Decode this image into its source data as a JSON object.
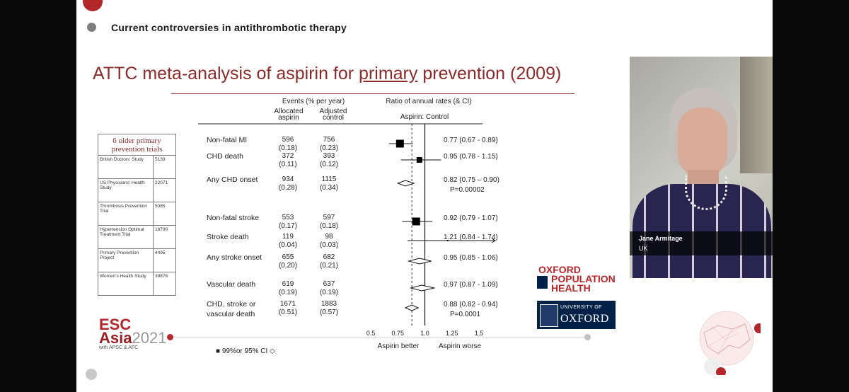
{
  "header": {
    "text": "Current controversies in antithrombotic therapy"
  },
  "slide_title": {
    "pre": "ATTC meta-analysis of aspirin for ",
    "u": "primary",
    "post": " prevention (2009)"
  },
  "trials_table": {
    "heading": "6 older primary prevention trials",
    "rows": [
      {
        "name": "British Doctors' Study",
        "n": "5139"
      },
      {
        "name": "US Physicians' Health Study",
        "n": "22071"
      },
      {
        "name": "Thrombosis Prevention Trial",
        "n": "5085"
      },
      {
        "name": "Hypertension Optimal Treatment Trial",
        "n": "18790"
      },
      {
        "name": "Primary Prevention Project",
        "n": "4495"
      },
      {
        "name": "Women's Health Study",
        "n": "39876"
      }
    ]
  },
  "columns": {
    "events": "Events  (% per year)",
    "allocated": "Allocated aspirin",
    "adjusted": "Adjusted control",
    "ratio": "Ratio of annual rates (& CI)",
    "subtitle": "Aspirin: Control"
  },
  "chart_data": {
    "type": "forest",
    "xlim": [
      0.5,
      1.5
    ],
    "reference_line": 1.0,
    "dashed_line": 0.88,
    "x_ticks": [
      "0.5",
      "0.75",
      "1.0",
      "1.25",
      "1.5"
    ],
    "x_label_left": "Aspirin better",
    "x_label_right": "Aspirin worse",
    "rows": [
      {
        "label": "Non-fatal MI",
        "asp": "596",
        "asp_pct": "(0.18)",
        "ctl": "756",
        "ctl_pct": "(0.23)",
        "est": 0.77,
        "lo": 0.67,
        "hi": 0.89,
        "text": "0.77 (0.67 - 0.89)",
        "marker": "square",
        "size": 11
      },
      {
        "label": "CHD death",
        "asp": "372",
        "asp_pct": "(0.11)",
        "ctl": "393",
        "ctl_pct": "(0.12)",
        "est": 0.95,
        "lo": 0.78,
        "hi": 1.15,
        "text": "0.95 (0.78 - 1.15)",
        "marker": "square",
        "size": 8
      },
      {
        "label": "Any CHD onset",
        "asp": "934",
        "asp_pct": "(0.28)",
        "ctl": "1115",
        "ctl_pct": "(0.34)",
        "est": 0.82,
        "lo": 0.75,
        "hi": 0.9,
        "text": "0.82 (0.75 – 0.90)",
        "p": "P=0.00002",
        "marker": "diamond"
      },
      {
        "label": "Non-fatal stroke",
        "asp": "553",
        "asp_pct": "(0.17)",
        "ctl": "597",
        "ctl_pct": "(0.18)",
        "est": 0.92,
        "lo": 0.79,
        "hi": 1.07,
        "text": "0.92 (0.79 - 1.07)",
        "marker": "square",
        "size": 11
      },
      {
        "label": "Stroke death",
        "asp": "119",
        "asp_pct": "(0.04)",
        "ctl": "98",
        "ctl_pct": "(0.03)",
        "est": 1.21,
        "lo": 0.84,
        "hi": 1.74,
        "text": "1.21 (0.84 - 1.74)",
        "marker": "square",
        "size": 2,
        "arrow": true
      },
      {
        "label": "Any stroke onset",
        "asp": "655",
        "asp_pct": "(0.20)",
        "ctl": "682",
        "ctl_pct": "(0.21)",
        "est": 0.95,
        "lo": 0.85,
        "hi": 1.06,
        "text": "0.95 (0.85 - 1.06)",
        "marker": "diamond"
      },
      {
        "label": "Vascular death",
        "asp": "619",
        "asp_pct": "(0.19)",
        "ctl": "637",
        "ctl_pct": "(0.19)",
        "est": 0.97,
        "lo": 0.87,
        "hi": 1.09,
        "text": "0.97 (0.87 - 1.09)",
        "marker": "diamond"
      },
      {
        "label": "CHD, stroke or vascular death",
        "asp": "1671",
        "asp_pct": "(0.51)",
        "ctl": "1883",
        "ctl_pct": "(0.57)",
        "est": 0.88,
        "lo": 0.82,
        "hi": 0.94,
        "text": "0.88 (0.82 - 0.94)",
        "p": "P=0.0001",
        "marker": "diamond"
      }
    ]
  },
  "legend": {
    "text": "99%or 95% CI"
  },
  "presenter": {
    "name": "Jane Armitage",
    "country": "UK"
  },
  "logos": {
    "oxford_population_health": [
      "OXFORD",
      "POPULATION",
      "HEALTH"
    ],
    "university": {
      "line1": "UNIVERSITY OF",
      "line2": "OXFORD"
    },
    "esc": {
      "line1": "ESC",
      "line2": "Asia",
      "year": "2021",
      "line3": "with APSC & AFC"
    }
  },
  "colors": {
    "accent": "#b3262a",
    "title": "#8b2a2a",
    "oxford_navy": "#002147"
  }
}
